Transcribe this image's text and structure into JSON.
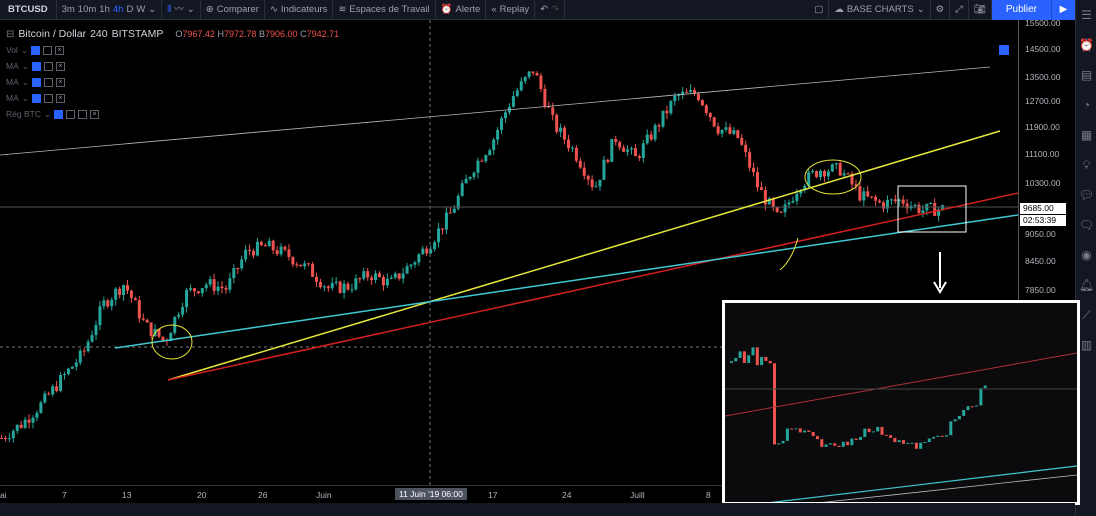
{
  "toolbar": {
    "symbol": "BTCUSD",
    "intervals": [
      "3m",
      "10m",
      "1h",
      "4h",
      "D",
      "W"
    ],
    "active_interval": "4h",
    "compare": "Comparer",
    "indicators": "Indicateurs",
    "workspaces": "Espaces de Travail",
    "alert": "Alerte",
    "replay": "Replay",
    "layout_name": "BASE CHARTS",
    "publish": "Publier"
  },
  "legend": {
    "title": "Bitcoin / Dollar",
    "interval": "240",
    "exchange": "BITSTAMP",
    "open_label": "O",
    "open": "7967.42",
    "high_label": "H",
    "high": "7972.78",
    "low_label": "B",
    "low": "7906.00",
    "close_label": "C",
    "close": "7942.71",
    "indicators": [
      "Vol",
      "MA",
      "MA",
      "MA",
      "Rég BTC"
    ]
  },
  "price_axis": {
    "ticks": [
      15500,
      14500,
      13500,
      12700,
      11900,
      11100,
      10300,
      9050,
      8450,
      7850
    ],
    "tick_labels": [
      "15500.00",
      "14500.00",
      "13500.00",
      "12700.00",
      "11900.00",
      "11100.00",
      "10300.00",
      "9050.00",
      "8450.00",
      "7850.00"
    ],
    "last_price": "9685.00",
    "countdown": "02:53:39"
  },
  "time_axis": {
    "labels": [
      "ai",
      "7",
      "13",
      "20",
      "26",
      "Juin",
      "17",
      "24",
      "Juill",
      "8"
    ],
    "crosshair_label": "11 Juin '19   06:00"
  },
  "chart_data": {
    "type": "candlestick",
    "title": "Bitcoin / Dollar 240 BITSTAMP",
    "scale": "log",
    "closes": [
      5400,
      5600,
      5900,
      6300,
      6700,
      7600,
      8000,
      7200,
      6900,
      7800,
      8000,
      7900,
      8700,
      8800,
      8600,
      8300,
      7900,
      7950,
      8200,
      8000,
      8400,
      8900,
      9600,
      10700,
      11500,
      12900,
      13800,
      12000,
      11200,
      10200,
      11600,
      11000,
      11900,
      12900,
      13000,
      11900,
      11600,
      10200,
      9400,
      10300,
      10700,
      10700,
      10000,
      9800,
      9900,
      9650,
      9685
    ],
    "colors": {
      "up": "#26a69a",
      "down": "#ef5350"
    }
  }
}
